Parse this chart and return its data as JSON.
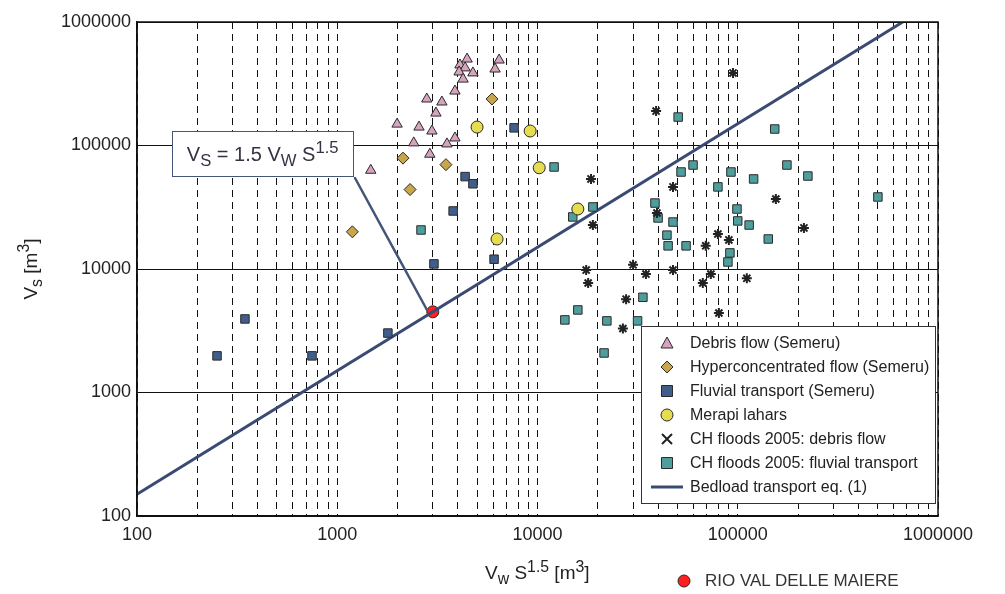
{
  "chart_data": {
    "type": "scatter",
    "xlabel": "V$_{w}$ S$^{1.5}$ [m$^{3}$]",
    "ylabel": "V$_{s}$ [m$^{3}$]",
    "log": "xy",
    "grid": true,
    "legend": "bottom right",
    "xlim": [
      100,
      1000000
    ],
    "ylim": [
      100,
      1000000
    ],
    "xticks": [
      100,
      {
        "value": 200,
        "label": null
      },
      {
        "value": 300,
        "label": null
      },
      {
        "value": 400,
        "label": null
      },
      {
        "value": 500,
        "label": null
      },
      {
        "value": 600,
        "label": null
      },
      {
        "value": 700,
        "label": null
      },
      {
        "value": 800,
        "label": null
      },
      {
        "value": 900,
        "label": null
      },
      1000,
      {
        "value": 2000,
        "label": null
      },
      {
        "value": 3000,
        "label": null
      },
      {
        "value": 4000,
        "label": null
      },
      {
        "value": 5000,
        "label": null
      },
      {
        "value": 6000,
        "label": null
      },
      {
        "value": 7000,
        "label": null
      },
      {
        "value": 8000,
        "label": null
      },
      {
        "value": 9000,
        "label": null
      },
      10000,
      {
        "value": 20000,
        "label": null
      },
      {
        "value": 30000,
        "label": null
      },
      {
        "value": 40000,
        "label": null
      },
      {
        "value": 50000,
        "label": null
      },
      {
        "value": 60000,
        "label": null
      },
      {
        "value": 70000,
        "label": null
      },
      {
        "value": 80000,
        "label": null
      },
      {
        "value": 90000,
        "label": null
      },
      100000,
      {
        "value": 200000,
        "label": null
      },
      {
        "value": 300000,
        "label": null
      },
      {
        "value": 400000,
        "label": null
      },
      {
        "value": 500000,
        "label": null
      },
      {
        "value": 600000,
        "label": null
      },
      {
        "value": 700000,
        "label": null
      },
      {
        "value": 800000,
        "label": null
      },
      {
        "value": 900000,
        "label": null
      },
      1000000
    ],
    "yticks": [
      100,
      1000,
      10000,
      100000,
      1000000
    ],
    "annotations": [
      {
        "text": "V$_{S}$ = 1.5 V$_{W}$ S$^{1.5}$",
        "x": 3000,
        "y": 4500
      }
    ],
    "series": [
      {
        "name": "Debris flow (Semeru)",
        "color": "#d8a3bf",
        "marker": "triangle",
        "x": [
          4450,
          4100,
          4350,
          4760,
          4060,
          4250,
          6430,
          6140,
          3870,
          2800,
          3330,
          3110,
          1990,
          2560,
          2970,
          2410,
          3870,
          3530,
          2900,
          1470
        ],
        "values": [
          501000,
          449000,
          425000,
          387000,
          394000,
          345000,
          492000,
          416000,
          276000,
          238000,
          225000,
          183000,
          149000,
          141000,
          131000,
          105000,
          115000,
          103000,
          85000,
          63000
        ]
      },
      {
        "name": "Hyperconcentrated flow (Semeru)",
        "color": "#c9a64c",
        "marker": "diamond",
        "x": [
          5930,
          2130,
          3490,
          2310,
          1190
        ],
        "values": [
          238000,
          79000,
          70000,
          44000,
          20000
        ]
      },
      {
        "name": "Fluvial transport (Semeru)",
        "color": "#3f5f8a",
        "marker": "square",
        "x": [
          7640,
          4350,
          4760,
          3790,
          3040,
          6070,
          251,
          346,
          748,
          1790
        ],
        "values": [
          139000,
          56000,
          49000,
          29500,
          11000,
          12000,
          1980,
          3940,
          1980,
          3030
        ]
      },
      {
        "name": "Merapi lahars",
        "color": "#e6dc50",
        "marker": "circle",
        "x": [
          4990,
          9190,
          10200,
          6280,
          15900
        ],
        "values": [
          141000,
          131000,
          66000,
          17500,
          30600
        ]
      },
      {
        "name": "CH floods 2005: debris flow",
        "color": "#222222",
        "marker": "cross",
        "x": [
          39100,
          18500,
          47500,
          155000,
          39500,
          18900,
          214000,
          79600,
          90300,
          69200,
          17500,
          30000,
          34800,
          47500,
          73400,
          66900,
          111000,
          17900,
          27700,
          80500,
          26700,
          94700
        ],
        "values": [
          190000,
          53600,
          46200,
          36900,
          28400,
          22700,
          21500,
          19200,
          17200,
          15400,
          9800,
          10800,
          9100,
          9800,
          9100,
          7700,
          8400,
          7700,
          5700,
          4400,
          3300,
          387000
        ]
      },
      {
        "name": "CH floods 2005: fluvial transport",
        "color": "#4f9e9e",
        "marker": "square",
        "x": [
          50400,
          153000,
          12100,
          59800,
          52100,
          92500,
          176000,
          224000,
          120000,
          79600,
          501000,
          38600,
          18900,
          15000,
          40000,
          47500,
          99100,
          100000,
          114000,
          44300,
          44900,
          55200,
          142000,
          91400,
          89300,
          33600,
          15900,
          13700,
          22200,
          31600,
          21500,
          2620
        ],
        "values": [
          170000,
          136000,
          67000,
          69500,
          61000,
          61000,
          69500,
          56600,
          53600,
          46200,
          38300,
          34200,
          31800,
          26400,
          25900,
          24000,
          30600,
          24500,
          22700,
          18800,
          15400,
          15400,
          17500,
          13500,
          11400,
          5900,
          4660,
          3870,
          3800,
          3800,
          2090,
          20700
        ]
      },
      {
        "name": "Bedload transport eq. (1)",
        "type": "line",
        "color": "#3b4a72",
        "marker": "none",
        "line_style": "solid",
        "x": [
          100,
          666667
        ],
        "values": [
          150,
          1000000
        ]
      },
      {
        "name": "RIO VAL DELLE MAIERE",
        "color": "#ff2020",
        "marker": "circle",
        "x": [
          3000
        ],
        "values": [
          4500
        ]
      }
    ]
  }
}
